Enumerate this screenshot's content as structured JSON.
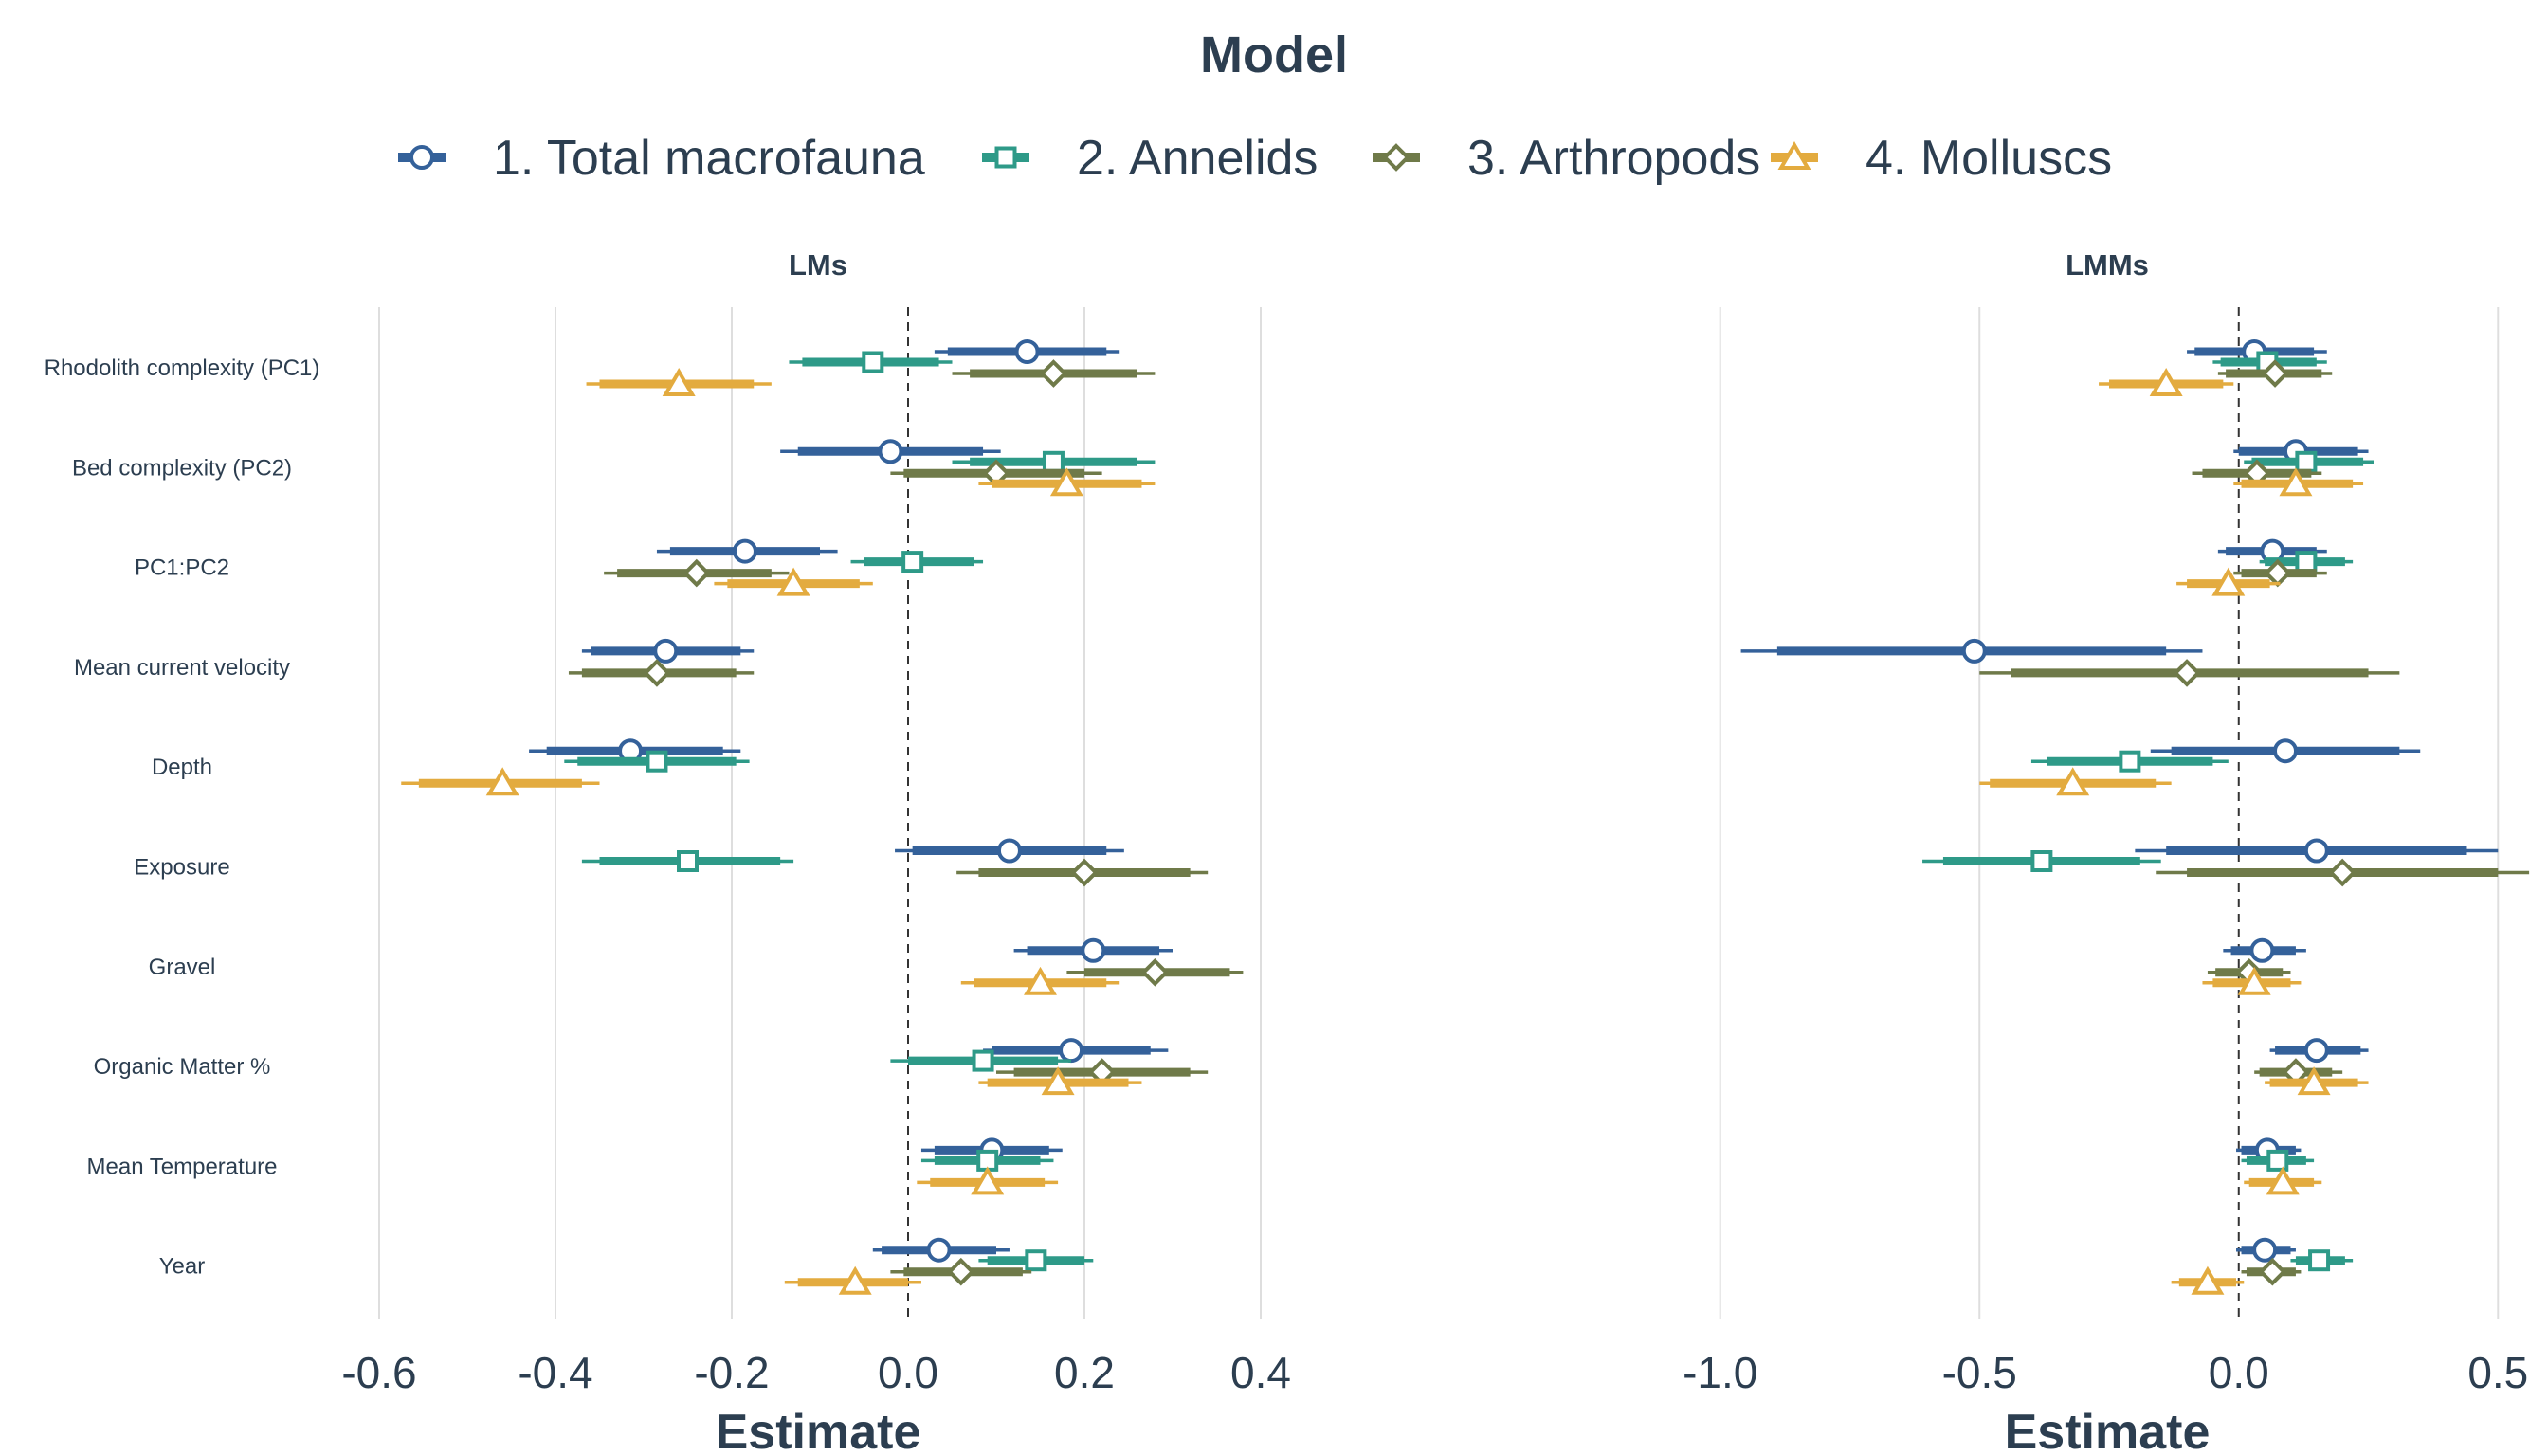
{
  "chart_data": {
    "type": "forest",
    "legend": {
      "title": "Model",
      "placement": "top",
      "entries": [
        {
          "label": "1. Total macrofauna",
          "color": "#34619a",
          "shape": "circle"
        },
        {
          "label": "2. Annelids",
          "color": "#2e9a88",
          "shape": "square"
        },
        {
          "label": "3. Arthropods",
          "color": "#6f7a49",
          "shape": "diamond"
        },
        {
          "label": "4. Molluscs",
          "color": "#e3ab3f",
          "shape": "triangle"
        }
      ]
    },
    "xlabel": "Estimate",
    "terms": [
      "Rhodolith complexity (PC1)",
      "Bed complexity (PC2)",
      "PC1:PC2",
      "Mean current velocity",
      "Depth",
      "Exposure",
      "Gravel",
      "Organic Matter %",
      "Mean Temperature",
      "Year"
    ],
    "panels": [
      {
        "title": "LMs",
        "xlim": [
          -0.6,
          0.4
        ],
        "ticks": [
          -0.6,
          -0.4,
          -0.2,
          0.0,
          0.2,
          0.4
        ],
        "tick_labels": [
          "-0.6",
          "-0.4",
          "-0.2",
          "0.0",
          "0.2",
          "0.4"
        ],
        "series": [
          {
            "name": "1. Total macrofauna",
            "points": [
              {
                "term": "Rhodolith complexity (PC1)",
                "est": 0.135,
                "lo95": 0.03,
                "hi95": 0.24,
                "lo50": 0.045,
                "hi50": 0.225
              },
              {
                "term": "Bed complexity (PC2)",
                "est": -0.02,
                "lo95": -0.145,
                "hi95": 0.105,
                "lo50": -0.125,
                "hi50": 0.085
              },
              {
                "term": "PC1:PC2",
                "est": -0.185,
                "lo95": -0.285,
                "hi95": -0.08,
                "lo50": -0.27,
                "hi50": -0.1
              },
              {
                "term": "Mean current velocity",
                "est": -0.275,
                "lo95": -0.37,
                "hi95": -0.175,
                "lo50": -0.36,
                "hi50": -0.19
              },
              {
                "term": "Depth",
                "est": -0.315,
                "lo95": -0.43,
                "hi95": -0.19,
                "lo50": -0.41,
                "hi50": -0.21
              },
              {
                "term": "Exposure",
                "est": 0.115,
                "lo95": -0.015,
                "hi95": 0.245,
                "lo50": 0.005,
                "hi50": 0.225
              },
              {
                "term": "Gravel",
                "est": 0.21,
                "lo95": 0.12,
                "hi95": 0.3,
                "lo50": 0.135,
                "hi50": 0.285
              },
              {
                "term": "Organic Matter %",
                "est": 0.185,
                "lo95": 0.085,
                "hi95": 0.295,
                "lo50": 0.095,
                "hi50": 0.275
              },
              {
                "term": "Mean Temperature",
                "est": 0.095,
                "lo95": 0.015,
                "hi95": 0.175,
                "lo50": 0.03,
                "hi50": 0.16
              },
              {
                "term": "Year",
                "est": 0.035,
                "lo95": -0.04,
                "hi95": 0.115,
                "lo50": -0.03,
                "hi50": 0.1
              }
            ]
          },
          {
            "name": "2. Annelids",
            "points": [
              {
                "term": "Rhodolith complexity (PC1)",
                "est": -0.04,
                "lo95": -0.135,
                "hi95": 0.05,
                "lo50": -0.12,
                "hi50": 0.035
              },
              {
                "term": "Bed complexity (PC2)",
                "est": 0.165,
                "lo95": 0.05,
                "hi95": 0.28,
                "lo50": 0.07,
                "hi50": 0.26
              },
              {
                "term": "PC1:PC2",
                "est": 0.005,
                "lo95": -0.065,
                "hi95": 0.085,
                "lo50": -0.05,
                "hi50": 0.075
              },
              {
                "term": "Depth",
                "est": -0.285,
                "lo95": -0.39,
                "hi95": -0.18,
                "lo50": -0.375,
                "hi50": -0.195
              },
              {
                "term": "Exposure",
                "est": -0.25,
                "lo95": -0.37,
                "hi95": -0.13,
                "lo50": -0.35,
                "hi50": -0.145
              },
              {
                "term": "Organic Matter %",
                "est": 0.085,
                "lo95": -0.02,
                "hi95": 0.185,
                "lo50": 0.0,
                "hi50": 0.17
              },
              {
                "term": "Mean Temperature",
                "est": 0.09,
                "lo95": 0.015,
                "hi95": 0.165,
                "lo50": 0.03,
                "hi50": 0.15
              },
              {
                "term": "Year",
                "est": 0.145,
                "lo95": 0.08,
                "hi95": 0.21,
                "lo50": 0.09,
                "hi50": 0.2
              }
            ]
          },
          {
            "name": "3. Arthropods",
            "points": [
              {
                "term": "Rhodolith complexity (PC1)",
                "est": 0.165,
                "lo95": 0.05,
                "hi95": 0.28,
                "lo50": 0.07,
                "hi50": 0.26
              },
              {
                "term": "Bed complexity (PC2)",
                "est": 0.1,
                "lo95": -0.02,
                "hi95": 0.22,
                "lo50": -0.005,
                "hi50": 0.2
              },
              {
                "term": "PC1:PC2",
                "est": -0.24,
                "lo95": -0.345,
                "hi95": -0.135,
                "lo50": -0.33,
                "hi50": -0.155
              },
              {
                "term": "Mean current velocity",
                "est": -0.285,
                "lo95": -0.385,
                "hi95": -0.175,
                "lo50": -0.37,
                "hi50": -0.195
              },
              {
                "term": "Exposure",
                "est": 0.2,
                "lo95": 0.055,
                "hi95": 0.34,
                "lo50": 0.08,
                "hi50": 0.32
              },
              {
                "term": "Gravel",
                "est": 0.28,
                "lo95": 0.18,
                "hi95": 0.38,
                "lo50": 0.2,
                "hi50": 0.365
              },
              {
                "term": "Organic Matter %",
                "est": 0.22,
                "lo95": 0.1,
                "hi95": 0.34,
                "lo50": 0.12,
                "hi50": 0.32
              },
              {
                "term": "Year",
                "est": 0.06,
                "lo95": -0.02,
                "hi95": 0.14,
                "lo50": -0.005,
                "hi50": 0.13
              }
            ]
          },
          {
            "name": "4. Molluscs",
            "points": [
              {
                "term": "Rhodolith complexity (PC1)",
                "est": -0.26,
                "lo95": -0.365,
                "hi95": -0.155,
                "lo50": -0.35,
                "hi50": -0.175
              },
              {
                "term": "Bed complexity (PC2)",
                "est": 0.18,
                "lo95": 0.08,
                "hi95": 0.28,
                "lo50": 0.095,
                "hi50": 0.265
              },
              {
                "term": "PC1:PC2",
                "est": -0.13,
                "lo95": -0.22,
                "hi95": -0.04,
                "lo50": -0.205,
                "hi50": -0.055
              },
              {
                "term": "Depth",
                "est": -0.46,
                "lo95": -0.575,
                "hi95": -0.35,
                "lo50": -0.555,
                "hi50": -0.37
              },
              {
                "term": "Gravel",
                "est": 0.15,
                "lo95": 0.06,
                "hi95": 0.24,
                "lo50": 0.075,
                "hi50": 0.225
              },
              {
                "term": "Organic Matter %",
                "est": 0.17,
                "lo95": 0.08,
                "hi95": 0.265,
                "lo50": 0.09,
                "hi50": 0.25
              },
              {
                "term": "Mean Temperature",
                "est": 0.09,
                "lo95": 0.01,
                "hi95": 0.17,
                "lo50": 0.025,
                "hi50": 0.155
              },
              {
                "term": "Year",
                "est": -0.06,
                "lo95": -0.14,
                "hi95": 0.015,
                "lo50": -0.125,
                "hi50": 0.0
              }
            ]
          }
        ]
      },
      {
        "title": "LMMs",
        "xlim": [
          -1.1,
          0.6
        ],
        "ticks": [
          -1.0,
          -0.5,
          0.0,
          0.5
        ],
        "tick_labels": [
          "-1.0",
          "-0.5",
          "0.0",
          "0.5"
        ],
        "series": [
          {
            "name": "1. Total macrofauna",
            "points": [
              {
                "term": "Rhodolith complexity (PC1)",
                "est": 0.03,
                "lo95": -0.1,
                "hi95": 0.17,
                "lo50": -0.085,
                "hi50": 0.145
              },
              {
                "term": "Bed complexity (PC2)",
                "est": 0.11,
                "lo95": -0.01,
                "hi95": 0.25,
                "lo50": 0.0,
                "hi50": 0.23
              },
              {
                "term": "PC1:PC2",
                "est": 0.065,
                "lo95": -0.04,
                "hi95": 0.17,
                "lo50": -0.025,
                "hi50": 0.15
              },
              {
                "term": "Mean current velocity",
                "est": -0.51,
                "lo95": -0.96,
                "hi95": -0.07,
                "lo50": -0.89,
                "hi50": -0.14
              },
              {
                "term": "Depth",
                "est": 0.09,
                "lo95": -0.17,
                "hi95": 0.35,
                "lo50": -0.13,
                "hi50": 0.31
              },
              {
                "term": "Exposure",
                "est": 0.15,
                "lo95": -0.2,
                "hi95": 0.5,
                "lo50": -0.14,
                "hi50": 0.44
              },
              {
                "term": "Gravel",
                "est": 0.045,
                "lo95": -0.03,
                "hi95": 0.13,
                "lo50": -0.015,
                "hi50": 0.11
              },
              {
                "term": "Organic Matter %",
                "est": 0.15,
                "lo95": 0.06,
                "hi95": 0.25,
                "lo50": 0.07,
                "hi50": 0.235
              },
              {
                "term": "Mean Temperature",
                "est": 0.055,
                "lo95": -0.005,
                "hi95": 0.12,
                "lo50": 0.005,
                "hi50": 0.11
              },
              {
                "term": "Year",
                "est": 0.05,
                "lo95": -0.005,
                "hi95": 0.11,
                "lo50": 0.005,
                "hi50": 0.1
              }
            ]
          },
          {
            "name": "2. Annelids",
            "points": [
              {
                "term": "Rhodolith complexity (PC1)",
                "est": 0.055,
                "lo95": -0.05,
                "hi95": 0.17,
                "lo50": -0.035,
                "hi50": 0.15
              },
              {
                "term": "Bed complexity (PC2)",
                "est": 0.13,
                "lo95": 0.01,
                "hi95": 0.26,
                "lo50": 0.025,
                "hi50": 0.24
              },
              {
                "term": "PC1:PC2",
                "est": 0.13,
                "lo95": 0.04,
                "hi95": 0.22,
                "lo50": 0.05,
                "hi50": 0.205
              },
              {
                "term": "Depth",
                "est": -0.21,
                "lo95": -0.4,
                "hi95": -0.02,
                "lo50": -0.37,
                "hi50": -0.05
              },
              {
                "term": "Exposure",
                "est": -0.38,
                "lo95": -0.61,
                "hi95": -0.15,
                "lo50": -0.57,
                "hi50": -0.19
              },
              {
                "term": "Mean Temperature",
                "est": 0.075,
                "lo95": 0.005,
                "hi95": 0.145,
                "lo50": 0.015,
                "hi50": 0.13
              },
              {
                "term": "Year",
                "est": 0.155,
                "lo95": 0.1,
                "hi95": 0.22,
                "lo50": 0.11,
                "hi50": 0.205
              }
            ]
          },
          {
            "name": "3. Arthropods",
            "points": [
              {
                "term": "Rhodolith complexity (PC1)",
                "est": 0.07,
                "lo95": -0.04,
                "hi95": 0.18,
                "lo50": -0.025,
                "hi50": 0.16
              },
              {
                "term": "Bed complexity (PC2)",
                "est": 0.035,
                "lo95": -0.09,
                "hi95": 0.16,
                "lo50": -0.07,
                "hi50": 0.14
              },
              {
                "term": "PC1:PC2",
                "est": 0.075,
                "lo95": -0.01,
                "hi95": 0.17,
                "lo50": 0.005,
                "hi50": 0.15
              },
              {
                "term": "Mean current velocity",
                "est": -0.1,
                "lo95": -0.5,
                "hi95": 0.31,
                "lo50": -0.44,
                "hi50": 0.25
              },
              {
                "term": "Exposure",
                "est": 0.2,
                "lo95": -0.16,
                "hi95": 0.56,
                "lo50": -0.1,
                "hi50": 0.5
              },
              {
                "term": "Gravel",
                "est": 0.02,
                "lo95": -0.06,
                "hi95": 0.1,
                "lo50": -0.045,
                "hi50": 0.085
              },
              {
                "term": "Organic Matter %",
                "est": 0.11,
                "lo95": 0.03,
                "hi95": 0.2,
                "lo50": 0.04,
                "hi50": 0.18
              },
              {
                "term": "Year",
                "est": 0.065,
                "lo95": 0.005,
                "hi95": 0.12,
                "lo50": 0.015,
                "hi50": 0.11
              }
            ]
          },
          {
            "name": "4. Molluscs",
            "points": [
              {
                "term": "Rhodolith complexity (PC1)",
                "est": -0.14,
                "lo95": -0.27,
                "hi95": -0.01,
                "lo50": -0.25,
                "hi50": -0.03
              },
              {
                "term": "Bed complexity (PC2)",
                "est": 0.11,
                "lo95": -0.01,
                "hi95": 0.24,
                "lo50": 0.005,
                "hi50": 0.22
              },
              {
                "term": "PC1:PC2",
                "est": -0.02,
                "lo95": -0.12,
                "hi95": 0.08,
                "lo50": -0.1,
                "hi50": 0.06
              },
              {
                "term": "Depth",
                "est": -0.32,
                "lo95": -0.5,
                "hi95": -0.13,
                "lo50": -0.48,
                "hi50": -0.16
              },
              {
                "term": "Gravel",
                "est": 0.03,
                "lo95": -0.07,
                "hi95": 0.12,
                "lo50": -0.05,
                "hi50": 0.1
              },
              {
                "term": "Organic Matter %",
                "est": 0.145,
                "lo95": 0.05,
                "hi95": 0.25,
                "lo50": 0.06,
                "hi50": 0.23
              },
              {
                "term": "Mean Temperature",
                "est": 0.085,
                "lo95": 0.01,
                "hi95": 0.16,
                "lo50": 0.02,
                "hi50": 0.145
              },
              {
                "term": "Year",
                "est": -0.06,
                "lo95": -0.13,
                "hi95": 0.01,
                "lo50": -0.115,
                "hi50": -0.005
              }
            ]
          }
        ]
      }
    ]
  }
}
